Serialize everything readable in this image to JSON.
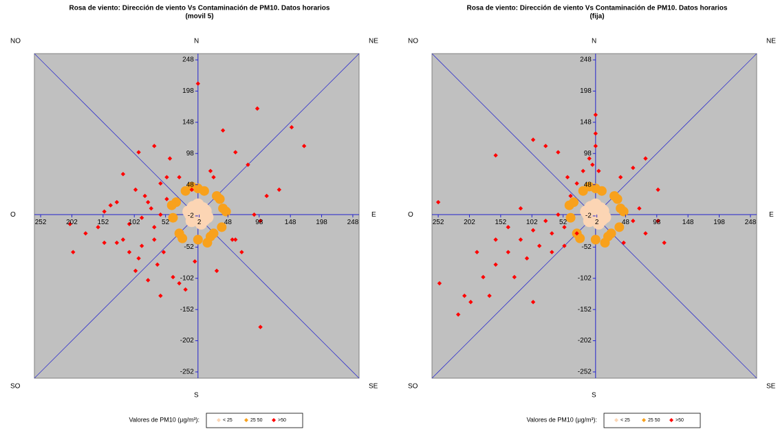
{
  "chart_data": [
    {
      "type": "scatter",
      "title": "Rosa de viento: Dirección de viento Vs Contaminación de PM10. Datos horarios",
      "subtitle": "(movil 5)",
      "compass": [
        "NO",
        "N",
        "NE",
        "O",
        "E",
        "SO",
        "S",
        "SE"
      ],
      "legend_title": "Valores de PM10 (µg/m³):",
      "xlim": [
        -262,
        258
      ],
      "ylim": [
        -262,
        258
      ],
      "xticks": [
        {
          "value": -252,
          "label": "252"
        },
        {
          "value": -202,
          "label": "202"
        },
        {
          "value": -152,
          "label": "152"
        },
        {
          "value": -102,
          "label": "102"
        },
        {
          "value": -52,
          "label": "52"
        },
        2,
        48,
        98,
        148,
        198,
        248
      ],
      "yticks": [
        248,
        198,
        148,
        98,
        48,
        -2,
        -52,
        -102,
        -152,
        -202,
        -252
      ],
      "series": [
        {
          "name": "< 25",
          "color": "#fcd5b4",
          "x": [
            -15,
            -8,
            0,
            8,
            15,
            -10,
            5,
            12,
            -3,
            -12,
            10,
            3
          ],
          "y": [
            5,
            12,
            16,
            10,
            -4,
            -10,
            -14,
            6,
            -6,
            0,
            -8,
            2
          ]
        },
        {
          "name": "25 50",
          "color": "#f8a11c",
          "x": [
            30,
            40,
            20,
            0,
            -20,
            -35,
            -40,
            -30,
            0,
            25,
            38,
            45,
            15,
            -10,
            -25,
            35,
            10,
            -42
          ],
          "y": [
            30,
            10,
            -35,
            42,
            38,
            20,
            -5,
            -30,
            -40,
            -30,
            -20,
            5,
            -45,
            45,
            -38,
            25,
            38,
            15
          ]
        },
        {
          "name": ">50",
          "color": "#ff0000",
          "x": [
            -60,
            -75,
            -90,
            -110,
            -130,
            -150,
            -180,
            -205,
            -70,
            -85,
            -100,
            -55,
            -65,
            -95,
            -120,
            -140,
            -160,
            -50,
            -60,
            -80,
            -45,
            -70,
            -100,
            -30,
            -20,
            0,
            20,
            40,
            60,
            80,
            100,
            130,
            150,
            170,
            -10,
            -30,
            -50,
            -70,
            -90,
            -110,
            -130,
            -60,
            -80,
            -40,
            55,
            70,
            90,
            110,
            -5,
            30,
            60,
            95,
            -120,
            -150,
            -200,
            25,
            -95,
            100
          ],
          "y": [
            0,
            10,
            -5,
            -15,
            20,
            5,
            -30,
            -15,
            -40,
            30,
            40,
            -60,
            -80,
            -70,
            -40,
            15,
            -20,
            60,
            50,
            20,
            90,
            110,
            -90,
            -110,
            -120,
            210,
            70,
            135,
            100,
            80,
            -10,
            40,
            140,
            110,
            40,
            60,
            25,
            -20,
            -50,
            -60,
            -45,
            -130,
            -105,
            -100,
            -40,
            -60,
            0,
            30,
            -75,
            -90,
            -40,
            170,
            65,
            -45,
            -60,
            60,
            100,
            -180
          ]
        }
      ]
    },
    {
      "type": "scatter",
      "title": "Rosa de viento: Dirección de viento Vs Contaminación de PM10. Datos horarios",
      "subtitle": "(fija)",
      "compass": [
        "NO",
        "N",
        "NE",
        "O",
        "E",
        "SO",
        "S",
        "SE"
      ],
      "legend_title": "Valores de PM10 (µg/m³):",
      "xlim": [
        -262,
        258
      ],
      "ylim": [
        -262,
        258
      ],
      "xticks": [
        {
          "value": -252,
          "label": "252"
        },
        {
          "value": -202,
          "label": "202"
        },
        {
          "value": -152,
          "label": "152"
        },
        {
          "value": -102,
          "label": "102"
        },
        {
          "value": -52,
          "label": "52"
        },
        2,
        48,
        98,
        148,
        198,
        248
      ],
      "yticks": [
        248,
        198,
        148,
        98,
        48,
        -2,
        -52,
        -102,
        -152,
        -202,
        -252
      ],
      "series": [
        {
          "name": "< 25",
          "color": "#fcd5b4",
          "x": [
            -15,
            -8,
            0,
            8,
            15,
            -10,
            5,
            12,
            -3,
            -12,
            10,
            3
          ],
          "y": [
            5,
            12,
            16,
            10,
            -4,
            -10,
            -14,
            6,
            -6,
            0,
            -8,
            2
          ]
        },
        {
          "name": "25 50",
          "color": "#f8a11c",
          "x": [
            30,
            40,
            20,
            0,
            -20,
            -35,
            -40,
            -30,
            0,
            25,
            38,
            45,
            15,
            -10,
            -25,
            35,
            10,
            -42
          ],
          "y": [
            30,
            10,
            -35,
            42,
            38,
            20,
            -5,
            -30,
            -40,
            -30,
            -20,
            5,
            -45,
            45,
            -38,
            25,
            38,
            15
          ]
        },
        {
          "name": ">50",
          "color": "#ff0000",
          "x": [
            -60,
            -80,
            -100,
            -120,
            -140,
            -160,
            -180,
            -200,
            -220,
            -250,
            -252,
            -170,
            -130,
            -110,
            -90,
            -70,
            -50,
            -40,
            -30,
            -20,
            -10,
            0,
            0,
            0,
            -5,
            5,
            -60,
            -80,
            -100,
            -160,
            -45,
            40,
            60,
            80,
            100,
            70,
            60,
            80,
            100,
            110,
            -30,
            -50,
            -70,
            -140,
            -120,
            -160,
            -190,
            -210,
            45,
            -100
          ],
          "y": [
            0,
            -10,
            -25,
            -40,
            -60,
            -80,
            -100,
            -140,
            -160,
            -110,
            20,
            -130,
            -100,
            -70,
            -50,
            -30,
            -20,
            30,
            50,
            70,
            90,
            110,
            130,
            160,
            80,
            70,
            100,
            110,
            120,
            95,
            60,
            60,
            75,
            90,
            40,
            10,
            -10,
            -30,
            -10,
            -45,
            -30,
            -50,
            -60,
            -20,
            10,
            -40,
            -60,
            -130,
            -45,
            -140
          ]
        }
      ]
    }
  ]
}
